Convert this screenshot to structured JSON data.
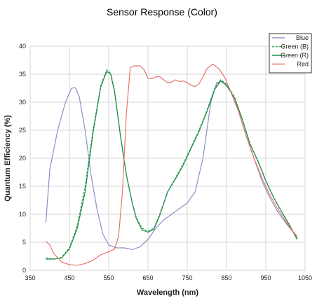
{
  "chart_data": {
    "type": "line",
    "title": "Sensor Response (Color)",
    "xlabel": "Wavelength (nm)",
    "ylabel": "Quantum Efficiency (%)",
    "xlim": [
      350,
      1050
    ],
    "ylim": [
      0,
      40
    ],
    "xticks": [
      350,
      450,
      550,
      650,
      750,
      850,
      950,
      1050
    ],
    "yticks": [
      0,
      5,
      10,
      15,
      20,
      25,
      30,
      35,
      40
    ],
    "grid": true,
    "legend_position": "top-right",
    "series": [
      {
        "name": "Blue",
        "color": "#8f8fc7",
        "dash": false,
        "points": [
          [
            390,
            8.5
          ],
          [
            400,
            18
          ],
          [
            420,
            25
          ],
          [
            440,
            30
          ],
          [
            455,
            32.5
          ],
          [
            465,
            32.6
          ],
          [
            475,
            31
          ],
          [
            490,
            25
          ],
          [
            505,
            17
          ],
          [
            520,
            11
          ],
          [
            535,
            6.5
          ],
          [
            550,
            4.5
          ],
          [
            570,
            4
          ],
          [
            590,
            4
          ],
          [
            610,
            3.7
          ],
          [
            630,
            4.2
          ],
          [
            650,
            5.5
          ],
          [
            670,
            7.5
          ],
          [
            690,
            9
          ],
          [
            710,
            10
          ],
          [
            730,
            11
          ],
          [
            750,
            12
          ],
          [
            770,
            14
          ],
          [
            790,
            20
          ],
          [
            810,
            30
          ],
          [
            825,
            33.5
          ],
          [
            840,
            33.8
          ],
          [
            860,
            32
          ],
          [
            880,
            28.5
          ],
          [
            900,
            24
          ],
          [
            920,
            20
          ],
          [
            940,
            16
          ],
          [
            960,
            13
          ],
          [
            980,
            10.5
          ],
          [
            1000,
            8.5
          ],
          [
            1020,
            6.8
          ],
          [
            1030,
            5.8
          ]
        ]
      },
      {
        "name": "Green (B)",
        "color": "#3fa35a",
        "dash": true,
        "points": [
          [
            390,
            2.2
          ],
          [
            410,
            2
          ],
          [
            430,
            2.3
          ],
          [
            450,
            4
          ],
          [
            470,
            8
          ],
          [
            490,
            15
          ],
          [
            510,
            25
          ],
          [
            530,
            33
          ],
          [
            545,
            35.8
          ],
          [
            555,
            35.2
          ],
          [
            565,
            32
          ],
          [
            580,
            24
          ],
          [
            595,
            17
          ],
          [
            610,
            12
          ],
          [
            620,
            9.5
          ],
          [
            635,
            7.5
          ],
          [
            650,
            7
          ],
          [
            665,
            7.5
          ],
          [
            680,
            10
          ],
          [
            700,
            14
          ],
          [
            720,
            16.5
          ],
          [
            740,
            19
          ],
          [
            760,
            22
          ],
          [
            780,
            25
          ],
          [
            800,
            28.5
          ],
          [
            820,
            32.5
          ],
          [
            835,
            34
          ],
          [
            850,
            33.2
          ],
          [
            870,
            31
          ],
          [
            890,
            27
          ],
          [
            910,
            22.5
          ],
          [
            930,
            19.5
          ],
          [
            950,
            16
          ],
          [
            970,
            13
          ],
          [
            990,
            10.5
          ],
          [
            1010,
            8.2
          ],
          [
            1030,
            5.6
          ]
        ]
      },
      {
        "name": "Green (R)",
        "color": "#1f8a4a",
        "dash": false,
        "points": [
          [
            390,
            2
          ],
          [
            410,
            2
          ],
          [
            430,
            2.2
          ],
          [
            450,
            3.8
          ],
          [
            470,
            7.5
          ],
          [
            490,
            14
          ],
          [
            510,
            24.5
          ],
          [
            530,
            32.8
          ],
          [
            545,
            35.5
          ],
          [
            555,
            35
          ],
          [
            565,
            31.8
          ],
          [
            580,
            24
          ],
          [
            595,
            17
          ],
          [
            610,
            12
          ],
          [
            620,
            9.3
          ],
          [
            635,
            7.2
          ],
          [
            650,
            6.8
          ],
          [
            665,
            7.3
          ],
          [
            680,
            9.8
          ],
          [
            700,
            14
          ],
          [
            720,
            16.3
          ],
          [
            740,
            18.8
          ],
          [
            760,
            21.8
          ],
          [
            780,
            24.8
          ],
          [
            800,
            28.3
          ],
          [
            820,
            32.3
          ],
          [
            835,
            33.8
          ],
          [
            850,
            33
          ],
          [
            870,
            30.8
          ],
          [
            890,
            27
          ],
          [
            910,
            22.5
          ],
          [
            930,
            19.5
          ],
          [
            950,
            16
          ],
          [
            970,
            13
          ],
          [
            990,
            10.5
          ],
          [
            1010,
            8
          ],
          [
            1030,
            5.5
          ]
        ]
      },
      {
        "name": "Red",
        "color": "#e8756a",
        "dash": false,
        "points": [
          [
            390,
            5.2
          ],
          [
            400,
            4.5
          ],
          [
            410,
            3
          ],
          [
            430,
            1.5
          ],
          [
            450,
            1
          ],
          [
            470,
            0.9
          ],
          [
            490,
            1.2
          ],
          [
            510,
            1.8
          ],
          [
            530,
            2.8
          ],
          [
            550,
            3.3
          ],
          [
            565,
            3.8
          ],
          [
            575,
            6
          ],
          [
            585,
            14
          ],
          [
            595,
            28
          ],
          [
            605,
            36.2
          ],
          [
            615,
            36.5
          ],
          [
            630,
            36.5
          ],
          [
            640,
            35.8
          ],
          [
            650,
            34.3
          ],
          [
            660,
            34.2
          ],
          [
            670,
            34.5
          ],
          [
            680,
            34.6
          ],
          [
            690,
            34
          ],
          [
            700,
            33.5
          ],
          [
            710,
            33.6
          ],
          [
            720,
            34
          ],
          [
            730,
            33.7
          ],
          [
            740,
            33.8
          ],
          [
            750,
            33.5
          ],
          [
            760,
            33
          ],
          [
            770,
            32.8
          ],
          [
            780,
            33.3
          ],
          [
            790,
            34.5
          ],
          [
            800,
            36
          ],
          [
            815,
            36.8
          ],
          [
            830,
            36
          ],
          [
            845,
            34.5
          ],
          [
            860,
            32
          ],
          [
            880,
            28.5
          ],
          [
            900,
            24
          ],
          [
            920,
            20
          ],
          [
            940,
            16.5
          ],
          [
            960,
            13.5
          ],
          [
            980,
            11
          ],
          [
            1000,
            8.8
          ],
          [
            1020,
            6.8
          ],
          [
            1030,
            6.1
          ]
        ]
      }
    ]
  }
}
